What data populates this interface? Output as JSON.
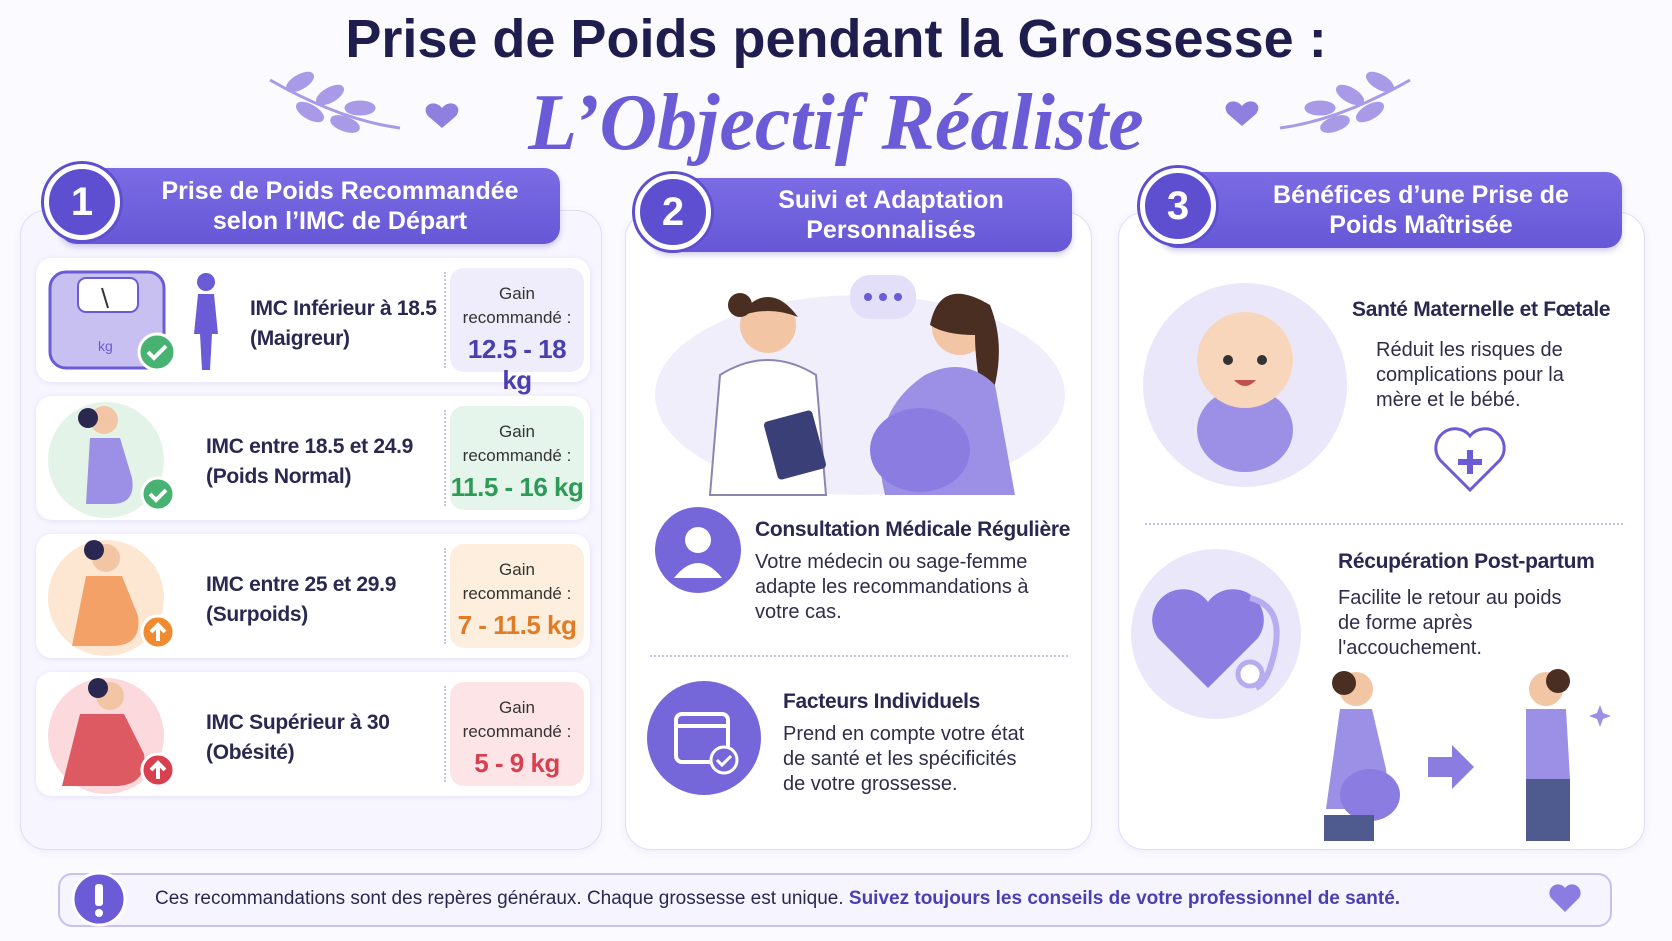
{
  "header": {
    "title": "Prise de Poids pendant la Grossesse :",
    "subtitle": "L’Objectif Réaliste"
  },
  "sections": [
    {
      "number": "1",
      "title": "Prise de Poids Recommandée selon l’IMC de Départ",
      "scale_label": "kg",
      "rows": [
        {
          "label": "IMC Inférieur à 18.5",
          "note": "(Maigreur)",
          "gain_label": "Gain recommandé :",
          "gain": "12.5 - 18 kg"
        },
        {
          "label": "IMC entre 18.5 et 24.9",
          "note": "(Poids Normal)",
          "gain_label": "Gain recommandé :",
          "gain": "11.5 - 16 kg"
        },
        {
          "label": "IMC entre 25 et 29.9",
          "note": "(Surpoids)",
          "gain_label": "Gain recommandé :",
          "gain": "7 - 11.5 kg"
        },
        {
          "label": "IMC Supérieur à 30",
          "note": "(Obésité)",
          "gain_label": "Gain recommandé :",
          "gain": "5 - 9 kg"
        }
      ]
    },
    {
      "number": "2",
      "title": "Suivi et Adaptation Personnalisés",
      "items": [
        {
          "title": "Consultation Médicale Régulière",
          "text": "Votre médecin ou sage-femme adapte les recommandations à votre cas."
        },
        {
          "title": "Facteurs Individuels",
          "text": "Prend en compte votre état de santé et les spécificités de votre grossesse."
        }
      ]
    },
    {
      "number": "3",
      "title": "Bénéfices d’une Prise de Poids Maîtrisée",
      "items": [
        {
          "title": "Santé Maternelle et Fœtale",
          "text": "Réduit les risques de complications pour la mère et le bébé."
        },
        {
          "title": "Récupération Post-partum",
          "text": "Facilite le retour au poids de forme après l'accouchement."
        }
      ]
    }
  ],
  "footer": {
    "text": "Ces recommandations sont des repères généraux. Chaque grossesse est unique.",
    "emphasis": "Suivez toujours les conseils de votre professionnel de santé."
  }
}
